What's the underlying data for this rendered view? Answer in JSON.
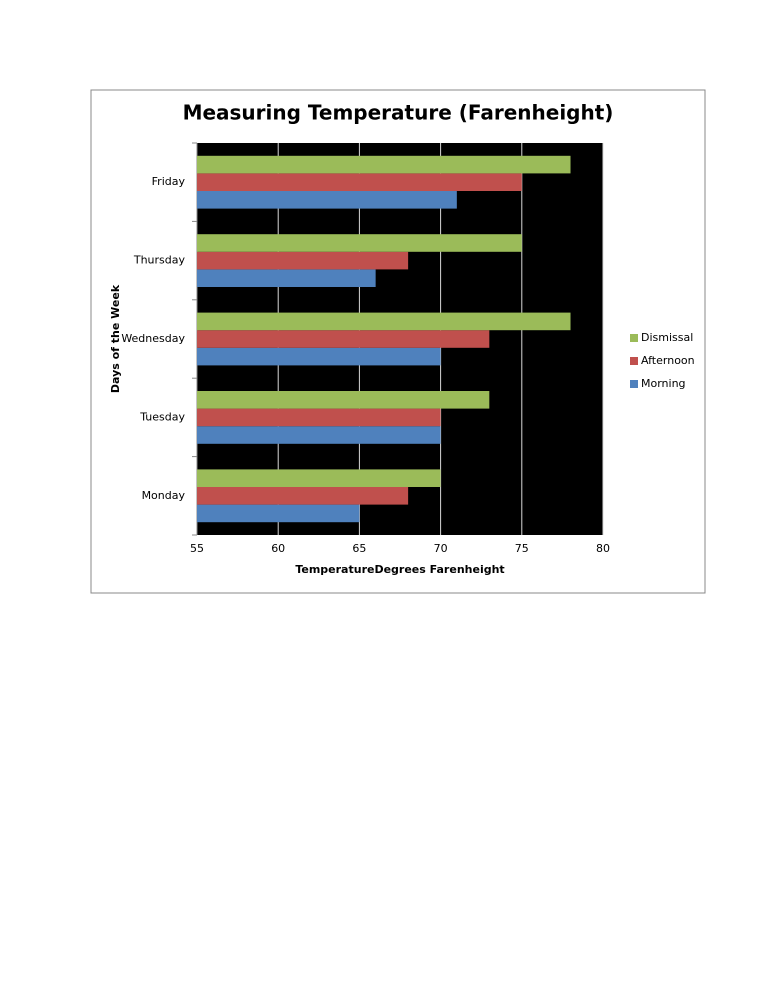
{
  "chart_data": {
    "type": "bar",
    "orientation": "horizontal",
    "title": "Measuring Temperature (Farenheight)",
    "x_label": "TemperatureDegrees Farenheight",
    "y_label": "Days of the Week",
    "categories": [
      "Monday",
      "Tuesday",
      "Wednesday",
      "Thursday",
      "Friday"
    ],
    "series": [
      {
        "name": "Morning",
        "color": "#4f81bd",
        "values": [
          65,
          70,
          70,
          66,
          71
        ]
      },
      {
        "name": "Afternoon",
        "color": "#c0504d",
        "values": [
          68,
          70,
          73,
          68,
          75
        ]
      },
      {
        "name": "Dismissal",
        "color": "#9bbb59",
        "values": [
          70,
          73,
          78,
          75,
          78
        ]
      }
    ],
    "xlim": [
      55,
      80
    ],
    "xticks": [
      55,
      60,
      65,
      70,
      75,
      80
    ],
    "grid": true,
    "plot_background": "#000000",
    "legend": "right"
  }
}
